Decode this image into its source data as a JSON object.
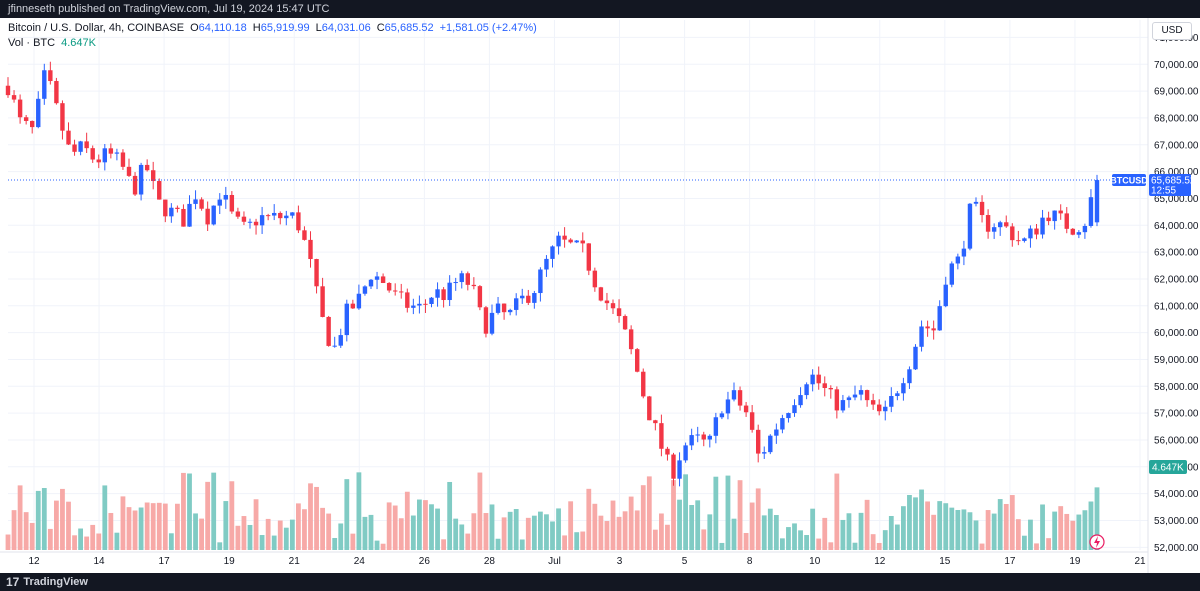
{
  "header": {
    "published_text": "jfinneseth published on TradingView.com, Jul 19, 2024 15:47 UTC"
  },
  "legend": {
    "symbol": "Bitcoin / U.S. Dollar, 4h, COINBASE",
    "open_label": "O",
    "open": "64,110.18",
    "high_label": "H",
    "high": "65,919.99",
    "low_label": "L",
    "low": "64,031.06",
    "close_label": "C",
    "close": "65,685.52",
    "change": "+1,581.05 (+2.47%)",
    "volume_label": "Vol · BTC",
    "volume": "4.647K"
  },
  "currency_button": "USD",
  "footer": {
    "brand": "TradingView",
    "logo_mark": "17"
  },
  "colors": {
    "up": "#2962ff",
    "down": "#f23645",
    "vol_up": "#80cbc4",
    "vol_down": "#f7a9a7",
    "last_price_tag": "#2962ff",
    "volume_tag": "#26a69a"
  },
  "chart_data": {
    "type": "candlestick",
    "symbol": "BTCUSD",
    "interval": "4h",
    "y_axis": {
      "min": 51900,
      "max": 71500,
      "ticks": [
        "71,000.00",
        "70,000.00",
        "69,000.00",
        "68,000.00",
        "67,000.00",
        "66,000.00",
        "65,000.00",
        "64,000.00",
        "63,000.00",
        "62,000.00",
        "61,000.00",
        "60,000.00",
        "59,000.00",
        "58,000.00",
        "57,000.00",
        "56,000.00",
        "55,000.00",
        "54,000.00",
        "53,000.00",
        "52,000.00"
      ]
    },
    "x_axis": {
      "labels": [
        "12",
        "14",
        "17",
        "19",
        "21",
        "24",
        "26",
        "28",
        "Jul",
        "3",
        "5",
        "8",
        "10",
        "12",
        "15",
        "17",
        "19",
        "21"
      ]
    },
    "last_price": {
      "label": "BTCUSD",
      "value": "65,685.52",
      "countdown": "12:55"
    },
    "volume_last": "4.647K",
    "price_path": [
      69200,
      67800,
      67500,
      69700,
      68100,
      66600,
      66900,
      66400,
      66650,
      66300,
      65300,
      66250,
      64800,
      64500,
      64200,
      65200,
      64300,
      65300,
      64200,
      63800,
      64300,
      64250,
      64320,
      64300,
      62900,
      60600,
      59300,
      60700,
      61200,
      62200,
      61900,
      61300,
      61000,
      60900,
      61500,
      61400,
      62000,
      61800,
      60200,
      60800,
      60600,
      61200,
      61600,
      62600,
      63400,
      63200,
      63000,
      61800,
      61000,
      60300,
      59000,
      57300,
      56000,
      54700,
      55800,
      56000,
      55800,
      57300,
      57600,
      57000,
      55300,
      56200,
      57000,
      57700,
      58500,
      58000,
      57400,
      57300,
      57800,
      57100,
      56900,
      57900,
      58900,
      60300,
      60100,
      62300,
      62700,
      64800,
      64000,
      64100,
      63800,
      63300,
      63800,
      64500,
      64200,
      63900,
      64100,
      65685
    ]
  }
}
